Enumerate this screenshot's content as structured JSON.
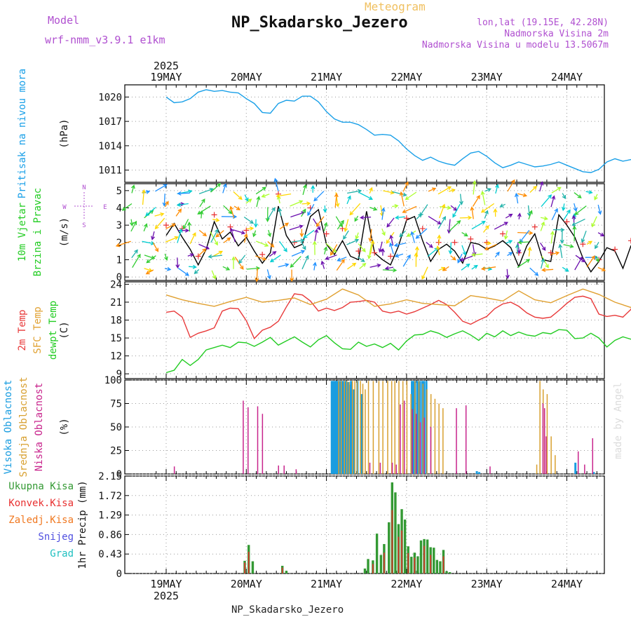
{
  "header": {
    "model_label": "Model",
    "model_name": "wrf-nmm_v3.9.1  e1km",
    "subtitle": "Meteogram",
    "station": "NP_Skadarsko_Jezero",
    "lonlat": "lon,lat (19.15E, 42.28N)",
    "altitude": "Nadmorska Visina 2m",
    "model_altitude": "Nadmorska Visina u modelu 13.5067m",
    "watermark": "made by Angel",
    "footer_station": "NP_Skadarsko_Jezero"
  },
  "colors": {
    "pressure": "#1aa0e8",
    "wind_speed": "#000000",
    "wind_gust": "#e83030",
    "temp_2m": "#e83838",
    "temp_sfc": "#e0a030",
    "dewpoint": "#22cc22",
    "cloud_high": "#1a9de0",
    "cloud_mid": "#d8a030",
    "cloud_low": "#c8248c",
    "precip_total": "#339933",
    "precip_conv": "#e83030",
    "precip_frozen": "#f07820",
    "precip_snow": "#5050e0",
    "precip_graupel": "#20c0c0"
  },
  "chart_data": [
    {
      "type": "line",
      "panel": "pressure",
      "ylabel_lines": [
        "Pritisak na nivou mora"
      ],
      "unit": "(hPa)",
      "ylim": [
        1009.5,
        1021.5
      ],
      "yticks": [
        1011,
        1014,
        1017,
        1020
      ],
      "x_top_year": "2025",
      "xticks": [
        "19MAY",
        "20MAY",
        "21MAY",
        "22MAY",
        "23MAY",
        "24MAY"
      ],
      "grid": true,
      "series": [
        {
          "key": "pressure",
          "x": [
            0,
            0.1,
            0.2,
            0.3,
            0.4,
            0.5,
            0.55,
            0.6,
            0.7,
            0.8,
            0.9,
            1.0,
            1.1,
            1.2,
            1.3,
            1.4,
            1.5,
            1.6,
            1.7,
            1.8,
            1.9,
            2.0,
            2.1,
            2.2,
            2.3,
            2.4,
            2.5,
            2.6,
            2.7,
            2.8,
            2.9,
            3.0,
            3.1,
            3.2,
            3.3,
            3.4,
            3.5,
            3.6,
            3.7,
            3.8,
            3.9,
            4.0,
            4.1,
            4.2,
            4.3,
            4.4,
            4.5,
            4.6,
            4.7,
            4.8,
            4.9,
            5.0,
            5.1,
            5.2,
            5.3,
            5.4,
            5.5,
            5.6,
            5.7,
            5.8,
            5.9,
            6.0
          ],
          "values": [
            1020.0,
            1019.3,
            1019.4,
            1019.8,
            1020.6,
            1020.9,
            1020.8,
            1020.7,
            1020.8,
            1020.6,
            1020.5,
            1019.8,
            1019.2,
            1018.1,
            1018.0,
            1019.2,
            1019.6,
            1019.5,
            1020.1,
            1020.1,
            1019.4,
            1018.2,
            1017.3,
            1016.9,
            1016.9,
            1016.6,
            1016.0,
            1015.3,
            1015.4,
            1015.3,
            1014.6,
            1013.6,
            1012.8,
            1012.2,
            1012.6,
            1012.1,
            1011.8,
            1011.6,
            1012.4,
            1013.1,
            1013.3,
            1012.7,
            1011.9,
            1011.3,
            1011.6,
            1012.0,
            1011.7,
            1011.4,
            1011.5,
            1011.7,
            1012.0,
            1011.6,
            1011.2,
            1010.8,
            1010.7,
            1011.1,
            1012.0,
            1012.4,
            1012.1,
            1012.3,
            1012.1,
            1011.0
          ]
        }
      ]
    },
    {
      "type": "line",
      "panel": "wind",
      "ylabel_lines": [
        "10m Vjetar",
        "Brzina i Pravac"
      ],
      "unit": "(m/s)",
      "compass": [
        "N",
        "S",
        "W",
        "E"
      ],
      "ylim": [
        -0.2,
        5.4
      ],
      "yticks": [
        0,
        1,
        2,
        3,
        4,
        5
      ],
      "grid": true,
      "series": [
        {
          "key": "wind_speed",
          "x": [
            0,
            0.1,
            0.2,
            0.3,
            0.4,
            0.5,
            0.6,
            0.7,
            0.8,
            0.9,
            1.0,
            1.1,
            1.2,
            1.3,
            1.4,
            1.5,
            1.6,
            1.7,
            1.8,
            1.9,
            2.0,
            2.1,
            2.2,
            2.3,
            2.4,
            2.5,
            2.6,
            2.7,
            2.8,
            2.9,
            3.0,
            3.1,
            3.2,
            3.3,
            3.4,
            3.5,
            3.6,
            3.7,
            3.8,
            3.9,
            4.0,
            4.1,
            4.2,
            4.3,
            4.4,
            4.5,
            4.6,
            4.7,
            4.8,
            4.9,
            5.0,
            5.1,
            5.2,
            5.3,
            5.4,
            5.5,
            5.6,
            5.7,
            5.8,
            5.9,
            6.0
          ],
          "values": [
            2.4,
            3.1,
            2.3,
            1.6,
            0.7,
            1.6,
            3.2,
            2.2,
            2.6,
            1.8,
            2.3,
            1.5,
            0.8,
            1.4,
            4.1,
            2.4,
            1.7,
            1.9,
            3.5,
            3.9,
            1.9,
            1.3,
            2.1,
            1.2,
            1.0,
            3.8,
            1.4,
            1.0,
            0.7,
            1.8,
            3.3,
            3.5,
            2.1,
            0.9,
            1.6,
            1.9,
            1.5,
            0.8,
            2.0,
            1.9,
            1.6,
            1.8,
            2.1,
            1.7,
            0.6,
            1.8,
            2.5,
            1.0,
            0.9,
            3.6,
            3.0,
            2.3,
            1.1,
            0.3,
            0.9,
            1.7,
            1.5,
            0.5,
            1.8,
            2.2,
            1.7
          ]
        },
        {
          "key": "wind_gust",
          "x": [
            0,
            0.2,
            0.4,
            0.6,
            0.8,
            1.0,
            1.2,
            1.4,
            1.6,
            1.8,
            2.0,
            2.2,
            2.4,
            2.6,
            2.8,
            3.0,
            3.2,
            3.4,
            3.6,
            3.8,
            4.0,
            4.2,
            4.4,
            4.6,
            4.8,
            5.0,
            5.2,
            5.4,
            5.6,
            5.8,
            6.0
          ],
          "values": [
            3.0,
            2.8,
            1.2,
            3.6,
            2.9,
            2.7,
            1.3,
            4.8,
            2.0,
            4.0,
            2.5,
            2.8,
            1.5,
            1.4,
            1.2,
            3.4,
            2.8,
            2.0,
            2.0,
            2.2,
            2.0,
            2.5,
            1.4,
            2.9,
            1.4,
            3.2,
            1.9,
            1.0,
            1.6,
            2.1,
            1.8
          ]
        }
      ]
    },
    {
      "type": "line",
      "panel": "temperature",
      "ylabel_lines": [
        "2m Temp",
        "SFC Temp",
        "dewpt Temp"
      ],
      "unit": "(C)",
      "ylim": [
        8.2,
        24.4
      ],
      "yticks": [
        9,
        12,
        15,
        18,
        21,
        24
      ],
      "grid": true,
      "series": [
        {
          "key": "temp_2m",
          "x": [
            0,
            0.1,
            0.2,
            0.3,
            0.4,
            0.5,
            0.6,
            0.7,
            0.8,
            0.9,
            1.0,
            1.1,
            1.2,
            1.3,
            1.4,
            1.5,
            1.6,
            1.7,
            1.8,
            1.9,
            2.0,
            2.1,
            2.2,
            2.3,
            2.4,
            2.5,
            2.6,
            2.7,
            2.8,
            2.9,
            3.0,
            3.1,
            3.2,
            3.3,
            3.4,
            3.5,
            3.6,
            3.7,
            3.8,
            3.9,
            4.0,
            4.1,
            4.2,
            4.3,
            4.4,
            4.5,
            4.6,
            4.7,
            4.8,
            4.9,
            5.0,
            5.1,
            5.2,
            5.3,
            5.4,
            5.5,
            5.6,
            5.7,
            5.8,
            5.9,
            6.0
          ],
          "values": [
            19.3,
            19.5,
            18.5,
            15.1,
            15.8,
            16.2,
            16.7,
            19.5,
            20.0,
            19.9,
            17.9,
            14.9,
            16.3,
            16.8,
            17.8,
            20.2,
            22.4,
            22.2,
            21.2,
            19.5,
            20.0,
            19.6,
            20.1,
            21.0,
            21.1,
            21.3,
            21.0,
            19.5,
            19.2,
            19.5,
            19.0,
            19.4,
            20.0,
            20.6,
            21.3,
            20.6,
            19.3,
            17.8,
            17.3,
            18.0,
            18.6,
            19.9,
            20.7,
            21.0,
            20.3,
            19.2,
            18.5,
            18.3,
            18.5,
            19.6,
            20.8,
            21.8,
            22.0,
            21.6,
            19.0,
            18.6,
            18.8,
            18.5,
            19.8,
            22.5,
            23.8
          ]
        },
        {
          "key": "temp_sfc",
          "x": [
            0,
            0.2,
            0.4,
            0.6,
            0.8,
            1.0,
            1.2,
            1.4,
            1.6,
            1.8,
            2.0,
            2.2,
            2.4,
            2.6,
            2.8,
            3.0,
            3.2,
            3.4,
            3.6,
            3.8,
            4.0,
            4.2,
            4.4,
            4.6,
            4.8,
            5.0,
            5.2,
            5.4,
            5.6,
            5.8,
            6.0
          ],
          "values": [
            22.2,
            21.4,
            20.8,
            20.3,
            21.1,
            21.8,
            21.0,
            21.3,
            21.7,
            20.6,
            21.5,
            23.2,
            22.2,
            20.3,
            20.7,
            21.4,
            20.8,
            20.6,
            20.4,
            22.1,
            21.7,
            21.2,
            22.9,
            21.4,
            20.9,
            22.1,
            23.2,
            22.3,
            21.0,
            20.1,
            23.7
          ]
        },
        {
          "key": "dewpoint",
          "x": [
            0,
            0.1,
            0.2,
            0.3,
            0.4,
            0.5,
            0.6,
            0.7,
            0.8,
            0.9,
            1.0,
            1.1,
            1.2,
            1.3,
            1.4,
            1.5,
            1.6,
            1.7,
            1.8,
            1.9,
            2.0,
            2.1,
            2.2,
            2.3,
            2.4,
            2.5,
            2.6,
            2.7,
            2.8,
            2.9,
            3.0,
            3.1,
            3.2,
            3.3,
            3.4,
            3.5,
            3.6,
            3.7,
            3.8,
            3.9,
            4.0,
            4.1,
            4.2,
            4.3,
            4.4,
            4.5,
            4.6,
            4.7,
            4.8,
            4.9,
            5.0,
            5.1,
            5.2,
            5.3,
            5.4,
            5.5,
            5.6,
            5.7,
            5.8,
            5.9,
            6.0
          ],
          "values": [
            9.2,
            9.6,
            11.4,
            10.4,
            11.4,
            13.0,
            13.4,
            13.8,
            13.4,
            14.3,
            14.2,
            13.6,
            14.3,
            15.1,
            13.8,
            14.5,
            15.2,
            14.3,
            13.5,
            14.7,
            15.4,
            14.2,
            13.2,
            13.1,
            14.3,
            13.6,
            14.0,
            13.4,
            14.1,
            13.0,
            14.5,
            15.5,
            15.6,
            16.2,
            15.8,
            15.1,
            15.7,
            16.2,
            15.5,
            14.6,
            15.8,
            15.2,
            16.2,
            15.4,
            16.0,
            15.5,
            15.3,
            15.9,
            15.7,
            16.4,
            16.3,
            14.9,
            15.0,
            15.8,
            15.0,
            13.5,
            14.6,
            15.2,
            14.8,
            14.9,
            13.6
          ]
        }
      ]
    },
    {
      "type": "bar",
      "panel": "clouds",
      "ylabel_lines": [
        "Visoka Oblacnost",
        "Srednja Oblacnost",
        "Niska Oblacnost"
      ],
      "unit": "(%)",
      "ylim": [
        0,
        100
      ],
      "yticks": [
        0,
        25,
        50,
        75,
        100
      ],
      "grid": true,
      "series": [
        {
          "key": "cloud_high",
          "x": [
            2.08,
            2.1,
            2.12,
            2.14,
            2.16,
            2.18,
            2.2,
            2.22,
            2.25,
            2.28,
            2.3,
            2.32,
            2.35,
            2.4,
            2.45,
            3.08,
            3.1,
            3.12,
            3.15,
            3.18,
            3.21,
            3.23,
            3.26,
            3.89,
            3.92,
            5.12,
            5.35,
            5.85
          ],
          "values": [
            99,
            99,
            99,
            99,
            99,
            99,
            99,
            99,
            99,
            98,
            95,
            99,
            90,
            99,
            85,
            99,
            99,
            99,
            99,
            99,
            99,
            99,
            99,
            3,
            2,
            12,
            2,
            3
          ]
        },
        {
          "key": "cloud_mid",
          "x": [
            2.15,
            2.18,
            2.22,
            2.25,
            2.28,
            2.32,
            2.35,
            2.38,
            2.42,
            2.45,
            2.48,
            2.52,
            2.58,
            2.65,
            2.7,
            2.76,
            2.81,
            2.85,
            2.9,
            2.95,
            3.0,
            3.05,
            3.1,
            3.15,
            3.2,
            3.25,
            3.3,
            3.35,
            3.4,
            3.45,
            4.62,
            4.66,
            4.7,
            4.75,
            4.8,
            4.85,
            5.88,
            5.98,
            6.0
          ],
          "values": [
            99,
            99,
            99,
            99,
            98,
            99,
            99,
            99,
            99,
            96,
            90,
            99,
            99,
            99,
            99,
            99,
            99,
            99,
            99,
            99,
            99,
            85,
            99,
            99,
            96,
            90,
            85,
            80,
            75,
            70,
            10,
            99,
            90,
            85,
            40,
            20,
            4,
            10,
            100
          ]
        },
        {
          "key": "cloud_low",
          "x": [
            0.08,
            0.94,
            1.0,
            1.12,
            1.18,
            1.38,
            1.45,
            1.6,
            2.52,
            2.65,
            2.8,
            2.85,
            2.9,
            2.95,
            3.05,
            3.1,
            3.15,
            3.2,
            3.28,
            3.6,
            3.72,
            4.02,
            4.68,
            4.7,
            4.72,
            5.12,
            5.2,
            5.3,
            6.0
          ],
          "values": [
            8,
            78,
            71,
            72,
            64,
            9,
            9,
            5,
            12,
            12,
            12,
            10,
            74,
            78,
            69,
            64,
            55,
            60,
            50,
            70,
            73,
            8,
            75,
            70,
            40,
            24,
            10,
            38,
            99
          ]
        }
      ]
    },
    {
      "type": "bar",
      "panel": "precipitation",
      "legend": [
        "Ukupna  Kisa",
        "Konvek.Kisa",
        "Zaledj.Kisa",
        "Snijeg",
        "Grad"
      ],
      "unit": "1hr Precip (mm)",
      "ylim": [
        0,
        2.15
      ],
      "yticks": [
        0,
        0.43,
        0.86,
        1.29,
        1.72,
        2.15
      ],
      "x_bottom_year": "2025",
      "xticks": [
        "19MAY",
        "20MAY",
        "21MAY",
        "22MAY",
        "23MAY",
        "24MAY"
      ],
      "grid": true,
      "series": [
        {
          "key": "precip_total",
          "x": [
            0.98,
            1.03,
            1.08,
            1.45,
            1.5,
            2.48,
            2.52,
            2.58,
            2.63,
            2.68,
            2.72,
            2.78,
            2.82,
            2.86,
            2.9,
            2.94,
            2.98,
            3.02,
            3.06,
            3.1,
            3.14,
            3.18,
            3.22,
            3.26,
            3.3,
            3.34,
            3.38,
            3.42,
            3.46,
            3.5,
            3.54
          ],
          "values": [
            0.28,
            0.63,
            0.27,
            0.17,
            0.06,
            0.11,
            0.32,
            0.29,
            0.88,
            0.41,
            0.65,
            1.13,
            2.01,
            1.79,
            1.09,
            1.42,
            1.19,
            0.6,
            0.37,
            0.46,
            0.38,
            0.73,
            0.76,
            0.75,
            0.58,
            0.57,
            0.3,
            0.27,
            0.52,
            0.05,
            0.03
          ]
        },
        {
          "key": "precip_conv",
          "x": [
            0.98,
            1.03,
            1.45,
            2.58,
            2.72,
            2.82,
            2.9,
            2.94,
            3.02,
            3.1,
            3.22,
            3.3,
            3.46
          ],
          "values": [
            0.24,
            0.48,
            0.13,
            0.21,
            0.46,
            1.4,
            0.81,
            0.95,
            0.45,
            0.35,
            0.61,
            0.41,
            0.38
          ]
        }
      ]
    }
  ]
}
